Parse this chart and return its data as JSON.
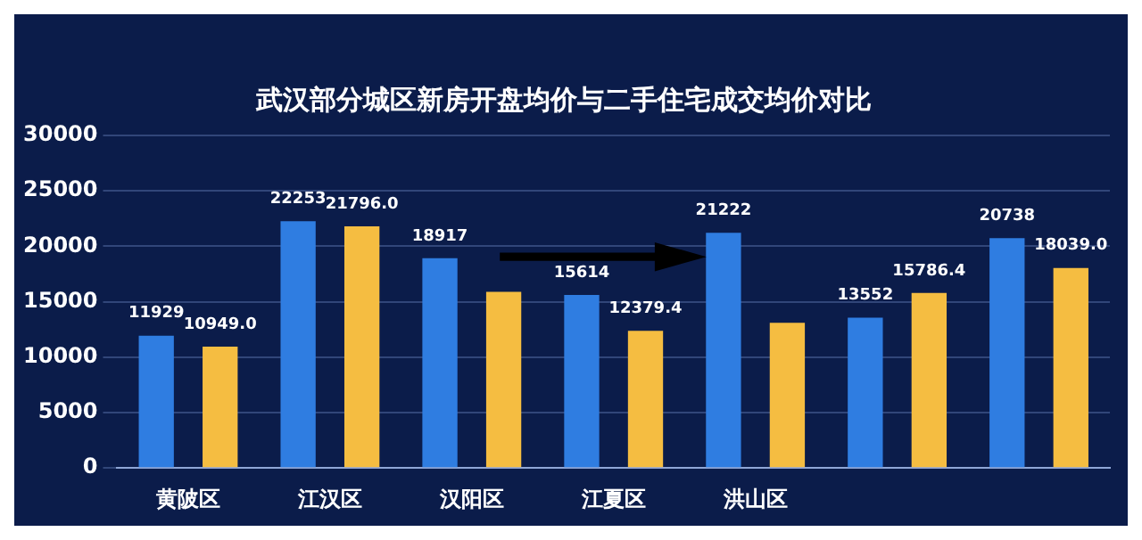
{
  "chart_data": {
    "type": "bar",
    "title": "武汉部分城区新房开盘均价与二手住宅成交均价对比",
    "categories": [
      "黄陂区",
      "江汉区",
      "汉阳区",
      "江夏区",
      "洪山区",
      null,
      null
    ],
    "series": [
      {
        "color": "#2f7de1",
        "values": [
          11929,
          22253,
          18917,
          15614,
          21222,
          13552,
          20738
        ],
        "value_labels": [
          "11929",
          "22253",
          "18917",
          "15614",
          "21222",
          "13552",
          "20738"
        ]
      },
      {
        "color": "#f5bd41",
        "values": [
          10949.0,
          21796.0,
          15900,
          12379.4,
          13100,
          15786.4,
          18039.0
        ],
        "value_labels": [
          "10949.0",
          "21796.0",
          null,
          "12379.4",
          null,
          "15786.4",
          "18039.0"
        ]
      }
    ],
    "ylim": [
      0,
      30000
    ],
    "yticks": [
      0,
      5000,
      10000,
      15000,
      20000,
      25000,
      30000
    ],
    "grid": "y"
  }
}
